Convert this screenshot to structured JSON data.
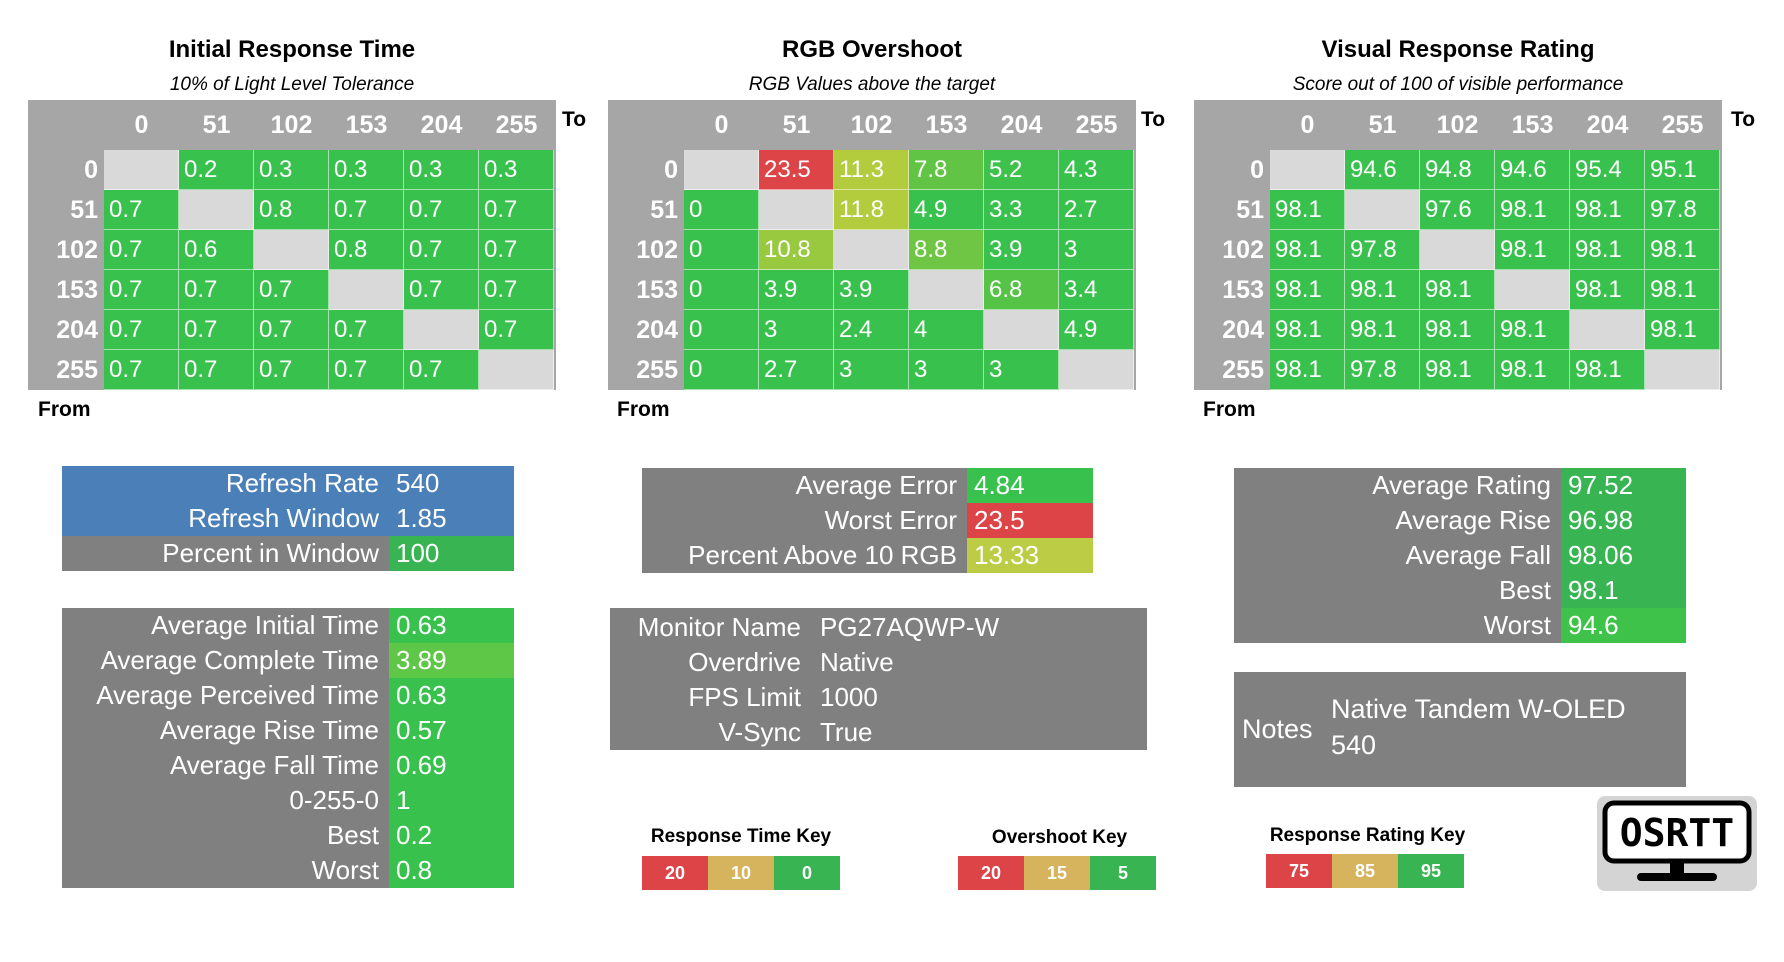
{
  "chart_data": [
    {
      "type": "heatmap",
      "title": "Initial Response Time",
      "subtitle": "10% of Light Level Tolerance",
      "xlabel": "To",
      "ylabel": "From",
      "columns": [
        "0",
        "51",
        "102",
        "153",
        "204",
        "255"
      ],
      "rows": [
        "0",
        "51",
        "102",
        "153",
        "204",
        "255"
      ],
      "values": [
        [
          null,
          0.2,
          0.3,
          0.3,
          0.3,
          0.3
        ],
        [
          0.7,
          null,
          0.8,
          0.7,
          0.7,
          0.7
        ],
        [
          0.7,
          0.6,
          null,
          0.8,
          0.7,
          0.7
        ],
        [
          0.7,
          0.7,
          0.7,
          null,
          0.7,
          0.7
        ],
        [
          0.7,
          0.7,
          0.7,
          0.7,
          null,
          0.7
        ],
        [
          0.7,
          0.7,
          0.7,
          0.7,
          0.7,
          null
        ]
      ],
      "cell_colors": [
        [
          "#d9d9d9",
          "#38c24d",
          "#38c24d",
          "#38c24d",
          "#38c24d",
          "#38c24d"
        ],
        [
          "#38c24d",
          "#d9d9d9",
          "#38c24d",
          "#38c24d",
          "#38c24d",
          "#38c24d"
        ],
        [
          "#38c24d",
          "#38c24d",
          "#d9d9d9",
          "#38c24d",
          "#38c24d",
          "#38c24d"
        ],
        [
          "#38c24d",
          "#38c24d",
          "#38c24d",
          "#d9d9d9",
          "#38c24d",
          "#38c24d"
        ],
        [
          "#38c24d",
          "#38c24d",
          "#38c24d",
          "#38c24d",
          "#d9d9d9",
          "#38c24d"
        ],
        [
          "#38c24d",
          "#38c24d",
          "#38c24d",
          "#38c24d",
          "#38c24d",
          "#d9d9d9"
        ]
      ]
    },
    {
      "type": "heatmap",
      "title": "RGB Overshoot",
      "subtitle": "RGB Values above the target",
      "xlabel": "To",
      "ylabel": "From",
      "columns": [
        "0",
        "51",
        "102",
        "153",
        "204",
        "255"
      ],
      "rows": [
        "0",
        "51",
        "102",
        "153",
        "204",
        "255"
      ],
      "values": [
        [
          null,
          23.5,
          11.3,
          7.8,
          5.2,
          4.3
        ],
        [
          0,
          null,
          11.8,
          4.9,
          3.3,
          2.7
        ],
        [
          0,
          10.8,
          null,
          8.8,
          3.9,
          3
        ],
        [
          0,
          3.9,
          3.9,
          null,
          6.8,
          3.4
        ],
        [
          0,
          3,
          2.4,
          4,
          null,
          4.9
        ],
        [
          0,
          2.7,
          3,
          3,
          3,
          null
        ]
      ],
      "cell_colors": [
        [
          "#d9d9d9",
          "#dd4448",
          "#b3cc3e",
          "#62c444",
          "#3ec24b",
          "#38c24d"
        ],
        [
          "#38c24d",
          "#d9d9d9",
          "#b3cc3e",
          "#38c24d",
          "#38c24d",
          "#38c24d"
        ],
        [
          "#38c24d",
          "#98c93f",
          "#d9d9d9",
          "#6ec644",
          "#38c24d",
          "#38c24d"
        ],
        [
          "#38c24d",
          "#38c24d",
          "#38c24d",
          "#d9d9d9",
          "#55c446",
          "#38c24d"
        ],
        [
          "#38c24d",
          "#38c24d",
          "#38c24d",
          "#38c24d",
          "#d9d9d9",
          "#38c24d"
        ],
        [
          "#38c24d",
          "#38c24d",
          "#38c24d",
          "#38c24d",
          "#38c24d",
          "#d9d9d9"
        ]
      ]
    },
    {
      "type": "heatmap",
      "title": "Visual Response Rating",
      "subtitle": "Score out of 100 of visible performance",
      "xlabel": "To",
      "ylabel": "From",
      "columns": [
        "0",
        "51",
        "102",
        "153",
        "204",
        "255"
      ],
      "rows": [
        "0",
        "51",
        "102",
        "153",
        "204",
        "255"
      ],
      "values": [
        [
          null,
          94.6,
          94.8,
          94.6,
          95.4,
          95.1
        ],
        [
          98.1,
          null,
          97.6,
          98.1,
          98.1,
          97.8
        ],
        [
          98.1,
          97.8,
          null,
          98.1,
          98.1,
          98.1
        ],
        [
          98.1,
          98.1,
          98.1,
          null,
          98.1,
          98.1
        ],
        [
          98.1,
          98.1,
          98.1,
          98.1,
          null,
          98.1
        ],
        [
          98.1,
          97.8,
          98.1,
          98.1,
          98.1,
          null
        ]
      ],
      "cell_colors": [
        [
          "#d9d9d9",
          "#38c24d",
          "#38c24d",
          "#38c24d",
          "#38c24d",
          "#38c24d"
        ],
        [
          "#38c24d",
          "#d9d9d9",
          "#38c24d",
          "#38c24d",
          "#38c24d",
          "#38c24d"
        ],
        [
          "#38c24d",
          "#38c24d",
          "#d9d9d9",
          "#38c24d",
          "#38c24d",
          "#38c24d"
        ],
        [
          "#38c24d",
          "#38c24d",
          "#38c24d",
          "#d9d9d9",
          "#38c24d",
          "#38c24d"
        ],
        [
          "#38c24d",
          "#38c24d",
          "#38c24d",
          "#38c24d",
          "#d9d9d9",
          "#38c24d"
        ],
        [
          "#38c24d",
          "#38c24d",
          "#38c24d",
          "#38c24d",
          "#38c24d",
          "#d9d9d9"
        ]
      ]
    }
  ],
  "refresh": {
    "rows": [
      {
        "label": "Refresh Rate",
        "value": "540",
        "label_bg": "#4a7fb8",
        "value_bg": "#4a7fb8"
      },
      {
        "label": "Refresh Window",
        "value": "1.85",
        "label_bg": "#4a7fb8",
        "value_bg": "#4a7fb8"
      },
      {
        "label": "Percent in Window",
        "value": "100",
        "label_bg": "#808080",
        "value_bg": "#38b552"
      }
    ]
  },
  "response_stats": {
    "rows": [
      {
        "label": "Average Initial Time",
        "value": "0.63",
        "value_bg": "#38c24d"
      },
      {
        "label": "Average Complete Time",
        "value": "3.89",
        "value_bg": "#5ec748"
      },
      {
        "label": "Average Perceived Time",
        "value": "0.63",
        "value_bg": "#38c24d"
      },
      {
        "label": "Average Rise Time",
        "value": "0.57",
        "value_bg": "#38c24d"
      },
      {
        "label": "Average Fall Time",
        "value": "0.69",
        "value_bg": "#38c24d"
      },
      {
        "label": "0-255-0",
        "value": "1",
        "value_bg": "#38c24d"
      },
      {
        "label": "Best",
        "value": "0.2",
        "value_bg": "#38c24d"
      },
      {
        "label": "Worst",
        "value": "0.8",
        "value_bg": "#38c24d"
      }
    ]
  },
  "error_stats": {
    "rows": [
      {
        "label": "Average Error",
        "value": "4.84",
        "value_bg": "#38c24d"
      },
      {
        "label": "Worst Error",
        "value": "23.5",
        "value_bg": "#dd4448"
      },
      {
        "label": "Percent Above 10 RGB",
        "value": "13.33",
        "value_bg": "#bccc44"
      }
    ]
  },
  "monitor_info": {
    "rows": [
      {
        "label": "Monitor Name",
        "value": "PG27AQWP-W"
      },
      {
        "label": "Overdrive",
        "value": "Native"
      },
      {
        "label": "FPS Limit",
        "value": "1000"
      },
      {
        "label": "V-Sync",
        "value": "True"
      }
    ]
  },
  "rating_stats": {
    "rows": [
      {
        "label": "Average Rating",
        "value": "97.52",
        "value_bg": "#38b552"
      },
      {
        "label": "Average Rise",
        "value": "96.98",
        "value_bg": "#38b552"
      },
      {
        "label": "Average Fall",
        "value": "98.06",
        "value_bg": "#38b552"
      },
      {
        "label": "Best",
        "value": "98.1",
        "value_bg": "#38b552"
      },
      {
        "label": "Worst",
        "value": "94.6",
        "value_bg": "#3fc249"
      }
    ]
  },
  "notes": {
    "label": "Notes",
    "line1": "Native Tandem W-OLED",
    "line2": "540"
  },
  "keys": [
    {
      "title": "Response Time Key",
      "cells": [
        {
          "text": "20",
          "color": "#dd4448"
        },
        {
          "text": "10",
          "color": "#d6b45e"
        },
        {
          "text": "0",
          "color": "#38b552"
        }
      ]
    },
    {
      "title": "Overshoot Key",
      "cells": [
        {
          "text": "20",
          "color": "#dd4448"
        },
        {
          "text": "15",
          "color": "#d6b45e"
        },
        {
          "text": "5",
          "color": "#38b552"
        }
      ]
    },
    {
      "title": "Response Rating Key",
      "cells": [
        {
          "text": "75",
          "color": "#dd4448"
        },
        {
          "text": "85",
          "color": "#d6b45e"
        },
        {
          "text": "95",
          "color": "#38b552"
        }
      ]
    }
  ],
  "logo": {
    "text": "OSRTT",
    "icon": "monitor-icon"
  }
}
